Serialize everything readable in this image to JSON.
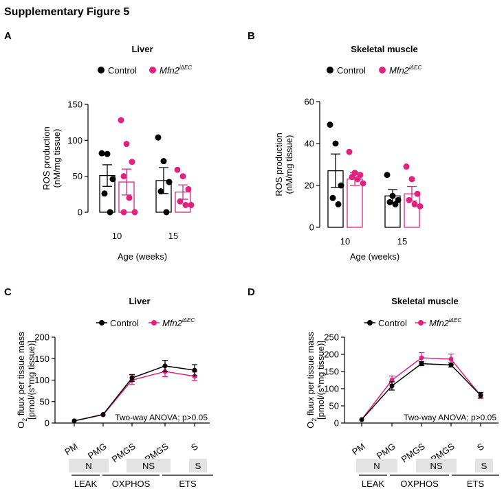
{
  "figure_title": "Supplementary Figure 5",
  "colors": {
    "control": "#000000",
    "mutant": "#e0237f",
    "box": "#e3e3e3"
  },
  "legend": {
    "control": "Control",
    "mutant_main": "Mfn2",
    "mutant_sup": "iΔEC"
  },
  "chart_data": [
    {
      "panel": "A",
      "type": "bar",
      "title": "Liver",
      "xlabel": "Age (weeks)",
      "ylabel_lines": [
        "ROS production",
        "(nM/mg tissue)"
      ],
      "categories": [
        "10",
        "15"
      ],
      "ylim": [
        0,
        150
      ],
      "yticks": [
        0,
        50,
        100,
        150
      ],
      "series": [
        {
          "name": "Control",
          "values": [
            51,
            44
          ],
          "sem": [
            15,
            18
          ],
          "points": [
            [
              82,
              81,
              46,
              26,
              0
            ],
            [
              104,
              71,
              42,
              29,
              0
            ]
          ]
        },
        {
          "name": "Mfn2iΔEC",
          "values": [
            42,
            28
          ],
          "sem": [
            18,
            10
          ],
          "points": [
            [
              128,
              95,
              70,
              50,
              20,
              0,
              0
            ],
            [
              59,
              50,
              32,
              15,
              10,
              10
            ]
          ]
        }
      ]
    },
    {
      "panel": "B",
      "type": "bar",
      "title": "Skeletal muscle",
      "xlabel": "Age (weeks)",
      "ylabel_lines": [
        "ROS production",
        "(nM/mg tissue)"
      ],
      "categories": [
        "10",
        "15"
      ],
      "ylim": [
        0,
        60
      ],
      "yticks": [
        0,
        20,
        40,
        60
      ],
      "series": [
        {
          "name": "Control",
          "values": [
            27,
            15
          ],
          "sem": [
            8,
            3
          ],
          "points": [
            [
              49,
              40,
              20,
              14,
              11
            ],
            [
              25,
              15,
              13,
              12,
              11
            ]
          ]
        },
        {
          "name": "Mfn2iΔEC",
          "values": [
            23,
            16
          ],
          "sem": [
            3,
            3.5
          ],
          "points": [
            [
              36,
              26,
              25,
              24,
              23,
              21
            ],
            [
              29,
              23,
              16,
              13,
              11,
              10
            ]
          ]
        }
      ]
    },
    {
      "panel": "C",
      "type": "line",
      "title": "Liver",
      "xlabel": "",
      "ylabel_main": "O",
      "ylabel_sub": "2",
      "ylabel_rest": " fluux per tissue mass",
      "ylabel_line2": "[pmol/(s*mg tissue)]",
      "categories": [
        "PM",
        "PMG",
        "PMGS",
        "PMGS",
        "S"
      ],
      "ylim": [
        0,
        200
      ],
      "yticks": [
        0,
        50,
        100,
        150,
        200
      ],
      "series": [
        {
          "name": "Control",
          "values": [
            5,
            20,
            105,
            133,
            123
          ],
          "sem": [
            0,
            0,
            8,
            13,
            13
          ]
        },
        {
          "name": "Mfn2iΔEC",
          "values": [
            5,
            19,
            100,
            120,
            109
          ],
          "sem": [
            0,
            0,
            10,
            12,
            10
          ]
        }
      ],
      "annotation": "Two-way ANOVA; p>0.05",
      "box_labels": [
        "N",
        "NS",
        "S"
      ],
      "state_labels": [
        "LEAK",
        "OXPHOS",
        "ETS"
      ]
    },
    {
      "panel": "D",
      "type": "line",
      "title": "Skeletal muscle",
      "xlabel": "",
      "ylabel_main": "O",
      "ylabel_sub": "2",
      "ylabel_rest": " fluux per tissue mass",
      "ylabel_line2": "[pmol/(s*mg tissue)]",
      "categories": [
        "PM",
        "PMG",
        "PMGS",
        "PMGS",
        "S"
      ],
      "ylim": [
        0,
        250
      ],
      "yticks": [
        0,
        50,
        100,
        150,
        200,
        250
      ],
      "series": [
        {
          "name": "Control",
          "values": [
            10,
            108,
            173,
            169,
            81
          ],
          "sem": [
            0,
            12,
            6,
            6,
            8
          ]
        },
        {
          "name": "Mfn2iΔEC",
          "values": [
            10,
            125,
            190,
            186,
            80
          ],
          "sem": [
            0,
            12,
            15,
            15,
            8
          ]
        }
      ],
      "annotation": "Two-way ANOVA; p>0.05",
      "box_labels": [
        "N",
        "NS",
        "S"
      ],
      "state_labels": [
        "LEAK",
        "OXPHOS",
        "ETS"
      ]
    }
  ]
}
